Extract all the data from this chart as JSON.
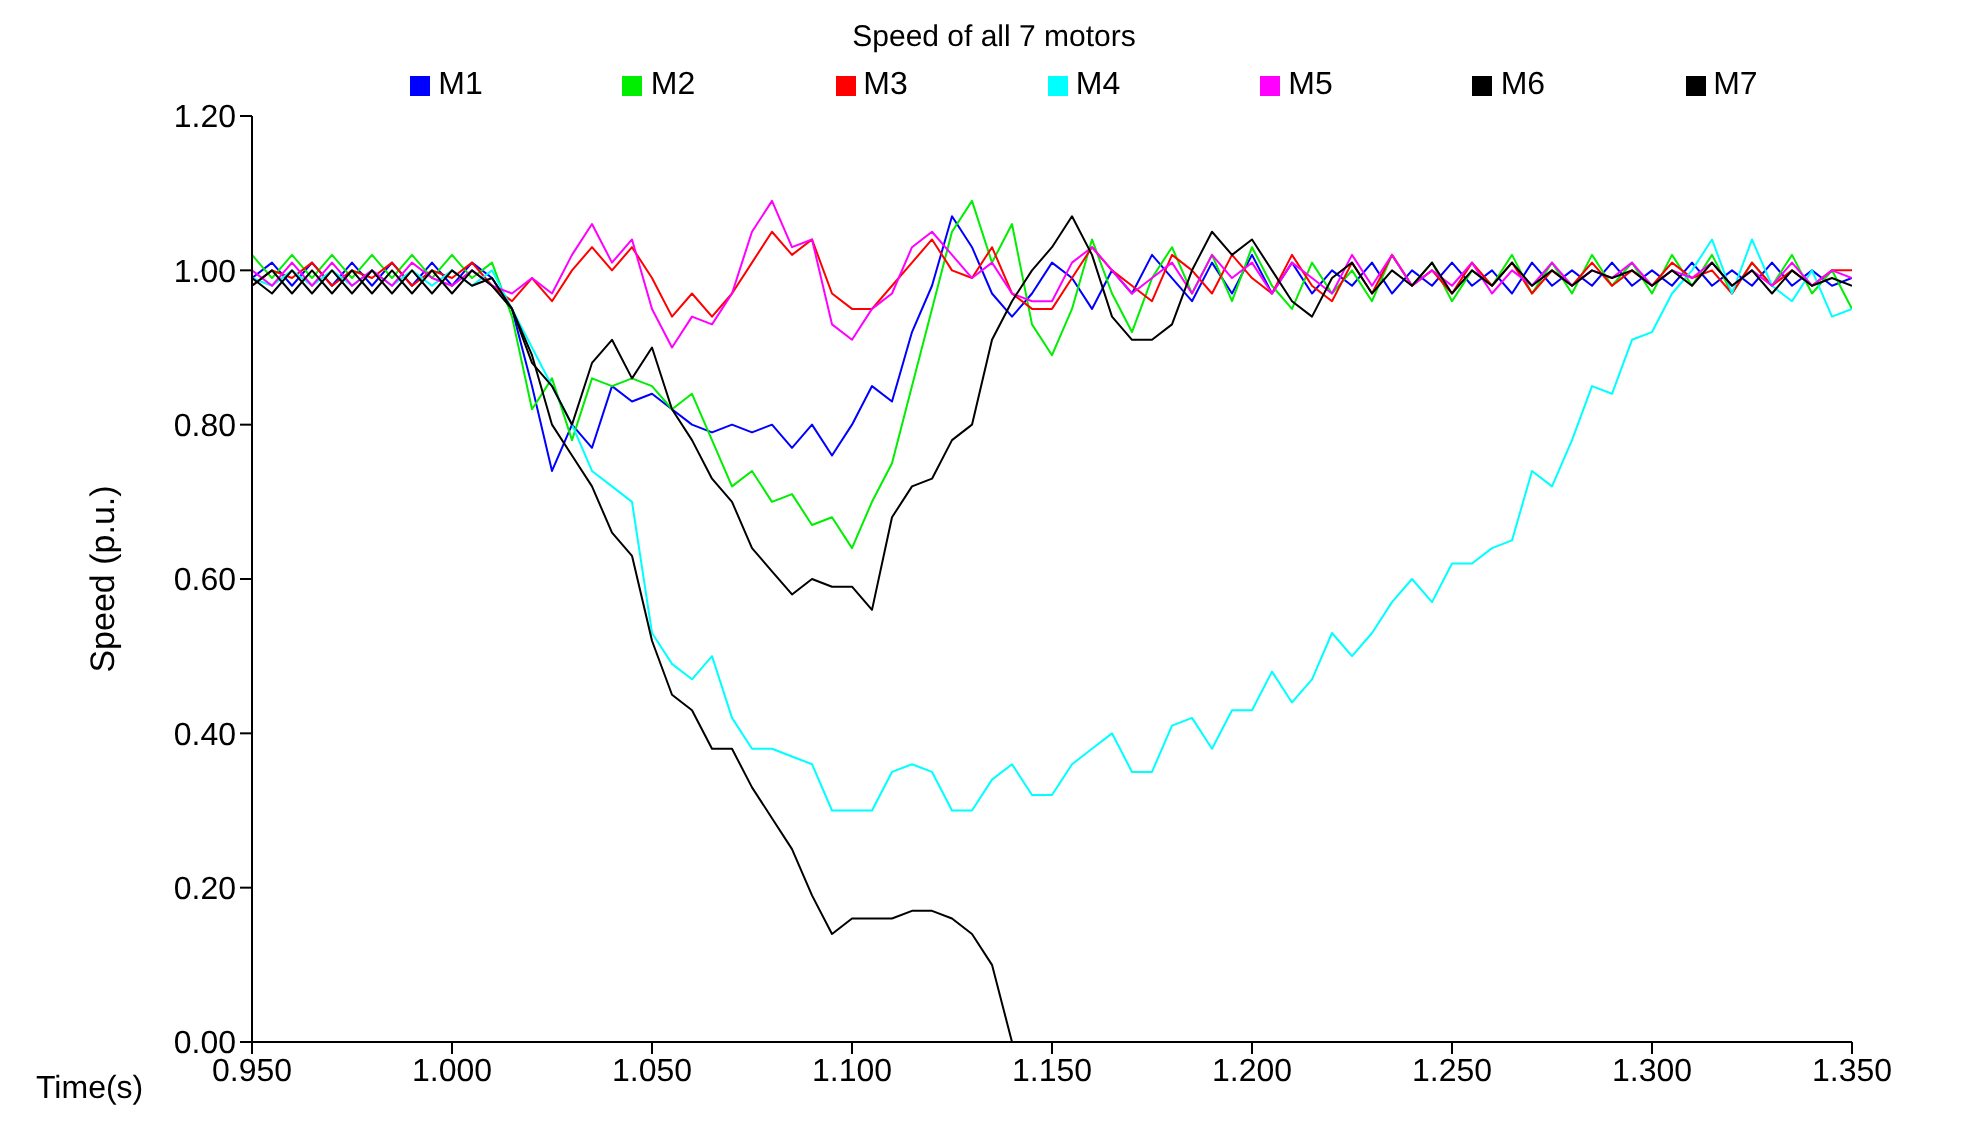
{
  "chart_data": {
    "type": "line",
    "title": "Speed of all 7 motors",
    "xlabel": "Time(s)",
    "ylabel": "Speed (p.u.)",
    "legend": "top",
    "grid": false,
    "marker": "none",
    "line_style": "solid",
    "xlim": [
      0.95,
      1.35
    ],
    "xticks": [
      {
        "value": 0.95,
        "label": "0.950"
      },
      {
        "value": 1.0,
        "label": "1.000"
      },
      {
        "value": 1.05,
        "label": "1.050"
      },
      {
        "value": 1.1,
        "label": "1.100"
      },
      {
        "value": 1.15,
        "label": "1.150"
      },
      {
        "value": 1.2,
        "label": "1.200"
      },
      {
        "value": 1.25,
        "label": "1.250"
      },
      {
        "value": 1.3,
        "label": "1.300"
      },
      {
        "value": 1.35,
        "label": "1.350"
      }
    ],
    "ylim": [
      0,
      1.2
    ],
    "yticks": [
      {
        "value": 0,
        "label": "0.00"
      },
      {
        "value": 0.2,
        "label": "0.20"
      },
      {
        "value": 0.4,
        "label": "0.40"
      },
      {
        "value": 0.6,
        "label": "0.60"
      },
      {
        "value": 0.8,
        "label": "0.80"
      },
      {
        "value": 1.0,
        "label": "1.00"
      },
      {
        "value": 1.2,
        "label": "1.20"
      }
    ],
    "x": [
      0.95,
      0.955,
      0.96,
      0.965,
      0.97,
      0.975,
      0.98,
      0.985,
      0.99,
      0.995,
      1.0,
      1.005,
      1.01,
      1.015,
      1.02,
      1.025,
      1.03,
      1.035,
      1.04,
      1.045,
      1.05,
      1.055,
      1.06,
      1.065,
      1.07,
      1.075,
      1.08,
      1.085,
      1.09,
      1.095,
      1.1,
      1.105,
      1.11,
      1.115,
      1.12,
      1.125,
      1.13,
      1.135,
      1.14,
      1.145,
      1.15,
      1.155,
      1.16,
      1.165,
      1.17,
      1.175,
      1.18,
      1.185,
      1.19,
      1.195,
      1.2,
      1.205,
      1.21,
      1.215,
      1.22,
      1.225,
      1.23,
      1.235,
      1.24,
      1.245,
      1.25,
      1.255,
      1.26,
      1.265,
      1.27,
      1.275,
      1.28,
      1.285,
      1.29,
      1.295,
      1.3,
      1.305,
      1.31,
      1.315,
      1.32,
      1.325,
      1.33,
      1.335,
      1.34,
      1.345,
      1.35
    ],
    "series": [
      {
        "name": "M1",
        "color": "#0000ff",
        "values": [
          0.99,
          1.01,
          0.98,
          1.01,
          0.98,
          1.01,
          0.98,
          1.01,
          0.98,
          1.01,
          0.98,
          1.01,
          0.99,
          0.95,
          0.85,
          0.74,
          0.8,
          0.77,
          0.85,
          0.83,
          0.84,
          0.82,
          0.8,
          0.79,
          0.8,
          0.79,
          0.8,
          0.77,
          0.8,
          0.76,
          0.8,
          0.85,
          0.83,
          0.92,
          0.98,
          1.07,
          1.03,
          0.97,
          0.94,
          0.97,
          1.01,
          0.99,
          0.95,
          1.0,
          0.97,
          1.02,
          0.99,
          0.96,
          1.01,
          0.97,
          1.02,
          0.97,
          1.01,
          0.97,
          1.0,
          0.98,
          1.01,
          0.97,
          1.0,
          0.98,
          1.01,
          0.98,
          1.0,
          0.97,
          1.01,
          0.98,
          1.0,
          0.98,
          1.01,
          0.98,
          1.0,
          0.98,
          1.01,
          0.98,
          1.0,
          0.98,
          1.01,
          0.98,
          1.0,
          0.98,
          0.99
        ]
      },
      {
        "name": "M2",
        "color": "#00ee00",
        "values": [
          1.02,
          0.99,
          1.02,
          0.99,
          1.02,
          0.99,
          1.02,
          0.99,
          1.02,
          0.99,
          1.02,
          0.99,
          1.01,
          0.94,
          0.82,
          0.86,
          0.78,
          0.86,
          0.85,
          0.86,
          0.85,
          0.82,
          0.84,
          0.78,
          0.72,
          0.74,
          0.7,
          0.71,
          0.67,
          0.68,
          0.64,
          0.7,
          0.75,
          0.85,
          0.95,
          1.05,
          1.09,
          1.01,
          1.06,
          0.93,
          0.89,
          0.95,
          1.04,
          0.97,
          0.92,
          0.99,
          1.03,
          0.97,
          1.02,
          0.96,
          1.03,
          0.98,
          0.95,
          1.01,
          0.97,
          1.0,
          0.96,
          1.02,
          0.98,
          1.01,
          0.96,
          1.0,
          0.98,
          1.02,
          0.97,
          1.01,
          0.97,
          1.02,
          0.98,
          1.01,
          0.97,
          1.02,
          0.98,
          1.02,
          0.97,
          1.01,
          0.98,
          1.02,
          0.97,
          1.0,
          0.95
        ]
      },
      {
        "name": "M3",
        "color": "#ff0000",
        "values": [
          0.98,
          1.0,
          0.99,
          1.01,
          0.98,
          1.0,
          0.99,
          1.01,
          0.98,
          1.0,
          0.99,
          1.01,
          0.98,
          0.96,
          0.99,
          0.96,
          1.0,
          1.03,
          1.0,
          1.03,
          0.99,
          0.94,
          0.97,
          0.94,
          0.97,
          1.01,
          1.05,
          1.02,
          1.04,
          0.97,
          0.95,
          0.95,
          0.98,
          1.01,
          1.04,
          1.0,
          0.99,
          1.03,
          0.97,
          0.95,
          0.95,
          0.99,
          1.03,
          1.0,
          0.98,
          0.96,
          1.02,
          1.0,
          0.97,
          1.02,
          0.99,
          0.97,
          1.02,
          0.98,
          0.96,
          1.01,
          0.97,
          1.02,
          0.98,
          1.0,
          0.97,
          1.01,
          0.98,
          1.01,
          0.97,
          1.0,
          0.98,
          1.01,
          0.98,
          1.0,
          0.98,
          1.01,
          0.99,
          1.0,
          0.97,
          1.01,
          0.98,
          1.0,
          0.98,
          1.0,
          1.0
        ]
      },
      {
        "name": "M4",
        "color": "#00ffff",
        "values": [
          0.99,
          0.98,
          1.0,
          0.98,
          1.0,
          0.98,
          1.0,
          0.98,
          1.0,
          0.98,
          1.0,
          0.98,
          1.0,
          0.95,
          0.9,
          0.85,
          0.8,
          0.74,
          0.72,
          0.7,
          0.53,
          0.49,
          0.47,
          0.5,
          0.42,
          0.38,
          0.38,
          0.37,
          0.36,
          0.3,
          0.3,
          0.3,
          0.35,
          0.36,
          0.35,
          0.3,
          0.3,
          0.34,
          0.36,
          0.32,
          0.32,
          0.36,
          0.38,
          0.4,
          0.35,
          0.35,
          0.41,
          0.42,
          0.38,
          0.43,
          0.43,
          0.48,
          0.44,
          0.47,
          0.53,
          0.5,
          0.53,
          0.57,
          0.6,
          0.57,
          0.62,
          0.62,
          0.64,
          0.65,
          0.74,
          0.72,
          0.78,
          0.85,
          0.84,
          0.91,
          0.92,
          0.97,
          1.0,
          1.04,
          0.97,
          1.04,
          0.98,
          0.96,
          1.0,
          0.94,
          0.95
        ]
      },
      {
        "name": "M5",
        "color": "#ff00ff",
        "values": [
          1.0,
          0.98,
          1.01,
          0.98,
          1.01,
          0.98,
          1.0,
          0.98,
          1.01,
          0.99,
          0.98,
          1.0,
          0.98,
          0.97,
          0.99,
          0.97,
          1.02,
          1.06,
          1.01,
          1.04,
          0.95,
          0.9,
          0.94,
          0.93,
          0.97,
          1.05,
          1.09,
          1.03,
          1.04,
          0.93,
          0.91,
          0.95,
          0.97,
          1.03,
          1.05,
          1.02,
          0.99,
          1.01,
          0.97,
          0.96,
          0.96,
          1.01,
          1.03,
          1.0,
          0.97,
          0.99,
          1.01,
          0.97,
          1.02,
          0.99,
          1.01,
          0.97,
          1.01,
          0.99,
          0.97,
          1.02,
          0.98,
          1.02,
          0.98,
          1.0,
          0.98,
          1.01,
          0.97,
          1.0,
          0.98,
          1.01,
          0.98,
          1.0,
          0.99,
          1.01,
          0.98,
          1.0,
          0.99,
          1.01,
          0.98,
          1.0,
          0.98,
          1.01,
          0.98,
          1.0,
          0.99
        ]
      },
      {
        "name": "M6",
        "color": "#000000",
        "values": [
          0.98,
          1.0,
          0.97,
          1.0,
          0.97,
          1.0,
          0.97,
          1.0,
          0.97,
          1.0,
          0.97,
          1.0,
          0.98,
          0.95,
          0.88,
          0.85,
          0.8,
          0.88,
          0.91,
          0.86,
          0.9,
          0.82,
          0.78,
          0.73,
          0.7,
          0.64,
          0.61,
          0.58,
          0.6,
          0.59,
          0.59,
          0.56,
          0.68,
          0.72,
          0.73,
          0.78,
          0.8,
          0.91,
          0.96,
          1.0,
          1.03,
          1.07,
          1.02,
          0.94,
          0.91,
          0.91,
          0.93,
          1.0,
          1.05,
          1.02,
          1.04,
          1.0,
          0.96,
          0.94,
          0.99,
          1.01,
          0.97,
          1.0,
          0.98,
          1.01,
          0.97,
          1.0,
          0.98,
          1.01,
          0.98,
          1.0,
          0.98,
          1.0,
          0.99,
          1.0,
          0.98,
          1.0,
          0.98,
          1.01,
          0.98,
          1.0,
          0.97,
          1.0,
          0.98,
          0.99,
          0.98
        ]
      },
      {
        "name": "M7",
        "color": "#000000",
        "values": [
          0.99,
          0.97,
          1.0,
          0.97,
          1.0,
          0.97,
          1.0,
          0.97,
          1.0,
          0.97,
          1.0,
          0.98,
          0.99,
          0.95,
          0.89,
          0.8,
          0.76,
          0.72,
          0.66,
          0.63,
          0.52,
          0.45,
          0.43,
          0.38,
          0.38,
          0.33,
          0.29,
          0.25,
          0.19,
          0.14,
          0.16,
          0.16,
          0.16,
          0.17,
          0.17,
          0.16,
          0.14,
          0.1,
          0.0,
          0.0,
          0.0,
          0.0,
          0.0,
          0.0,
          0.0,
          0.0,
          0.0,
          0.0,
          0.0,
          0.0,
          0.0,
          0.0,
          0.0,
          0.0,
          0.0,
          0.0,
          0.0,
          0.0,
          0.0,
          0.0,
          0.0,
          0.0,
          0.0,
          0.0,
          0.0,
          0.0,
          0.0,
          0.0,
          0.0,
          0.0,
          0.0,
          0.0,
          0.0,
          0.0,
          0.0,
          0.0,
          0.0,
          0.0,
          0.0,
          0.0,
          0.0
        ]
      }
    ]
  }
}
